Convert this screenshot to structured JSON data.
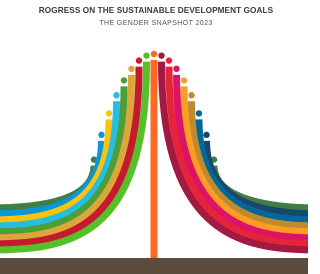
{
  "header": {
    "title": "ROGRESS ON THE SUSTAINABLE DEVELOPMENT GOALS",
    "subtitle": "THE GENDER SNAPSHOT 2023"
  }
}
